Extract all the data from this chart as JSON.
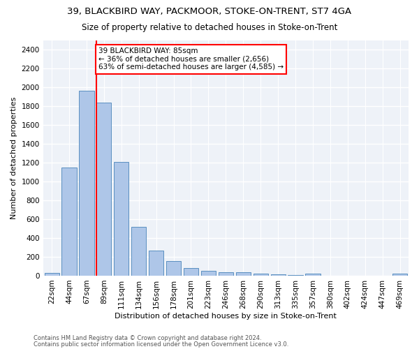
{
  "title1": "39, BLACKBIRD WAY, PACKMOOR, STOKE-ON-TRENT, ST7 4GA",
  "title2": "Size of property relative to detached houses in Stoke-on-Trent",
  "xlabel": "Distribution of detached houses by size in Stoke-on-Trent",
  "ylabel": "Number of detached properties",
  "categories": [
    "22sqm",
    "44sqm",
    "67sqm",
    "89sqm",
    "111sqm",
    "134sqm",
    "156sqm",
    "178sqm",
    "201sqm",
    "223sqm",
    "246sqm",
    "268sqm",
    "290sqm",
    "313sqm",
    "335sqm",
    "357sqm",
    "380sqm",
    "402sqm",
    "424sqm",
    "447sqm",
    "469sqm"
  ],
  "values": [
    30,
    1150,
    1960,
    1840,
    1210,
    515,
    265,
    155,
    80,
    50,
    40,
    40,
    20,
    15,
    10,
    20,
    0,
    0,
    0,
    0,
    20
  ],
  "bar_color": "#aec6e8",
  "bar_edge_color": "#5a8fc0",
  "vline_bin_index": 3,
  "annotation_line1": "39 BLACKBIRD WAY: 85sqm",
  "annotation_line2": "← 36% of detached houses are smaller (2,656)",
  "annotation_line3": "63% of semi-detached houses are larger (4,585) →",
  "annotation_box_color": "white",
  "annotation_box_edge_color": "red",
  "vline_color": "red",
  "footer1": "Contains HM Land Registry data © Crown copyright and database right 2024.",
  "footer2": "Contains public sector information licensed under the Open Government Licence v3.0.",
  "ylim": [
    0,
    2500
  ],
  "yticks": [
    0,
    200,
    400,
    600,
    800,
    1000,
    1200,
    1400,
    1600,
    1800,
    2000,
    2200,
    2400
  ],
  "bg_color": "#eef2f8",
  "grid_color": "white",
  "title1_fontsize": 9.5,
  "title2_fontsize": 8.5,
  "xlabel_fontsize": 8,
  "ylabel_fontsize": 8,
  "tick_fontsize": 7.5,
  "annotation_fontsize": 7.5,
  "footer_fontsize": 6
}
